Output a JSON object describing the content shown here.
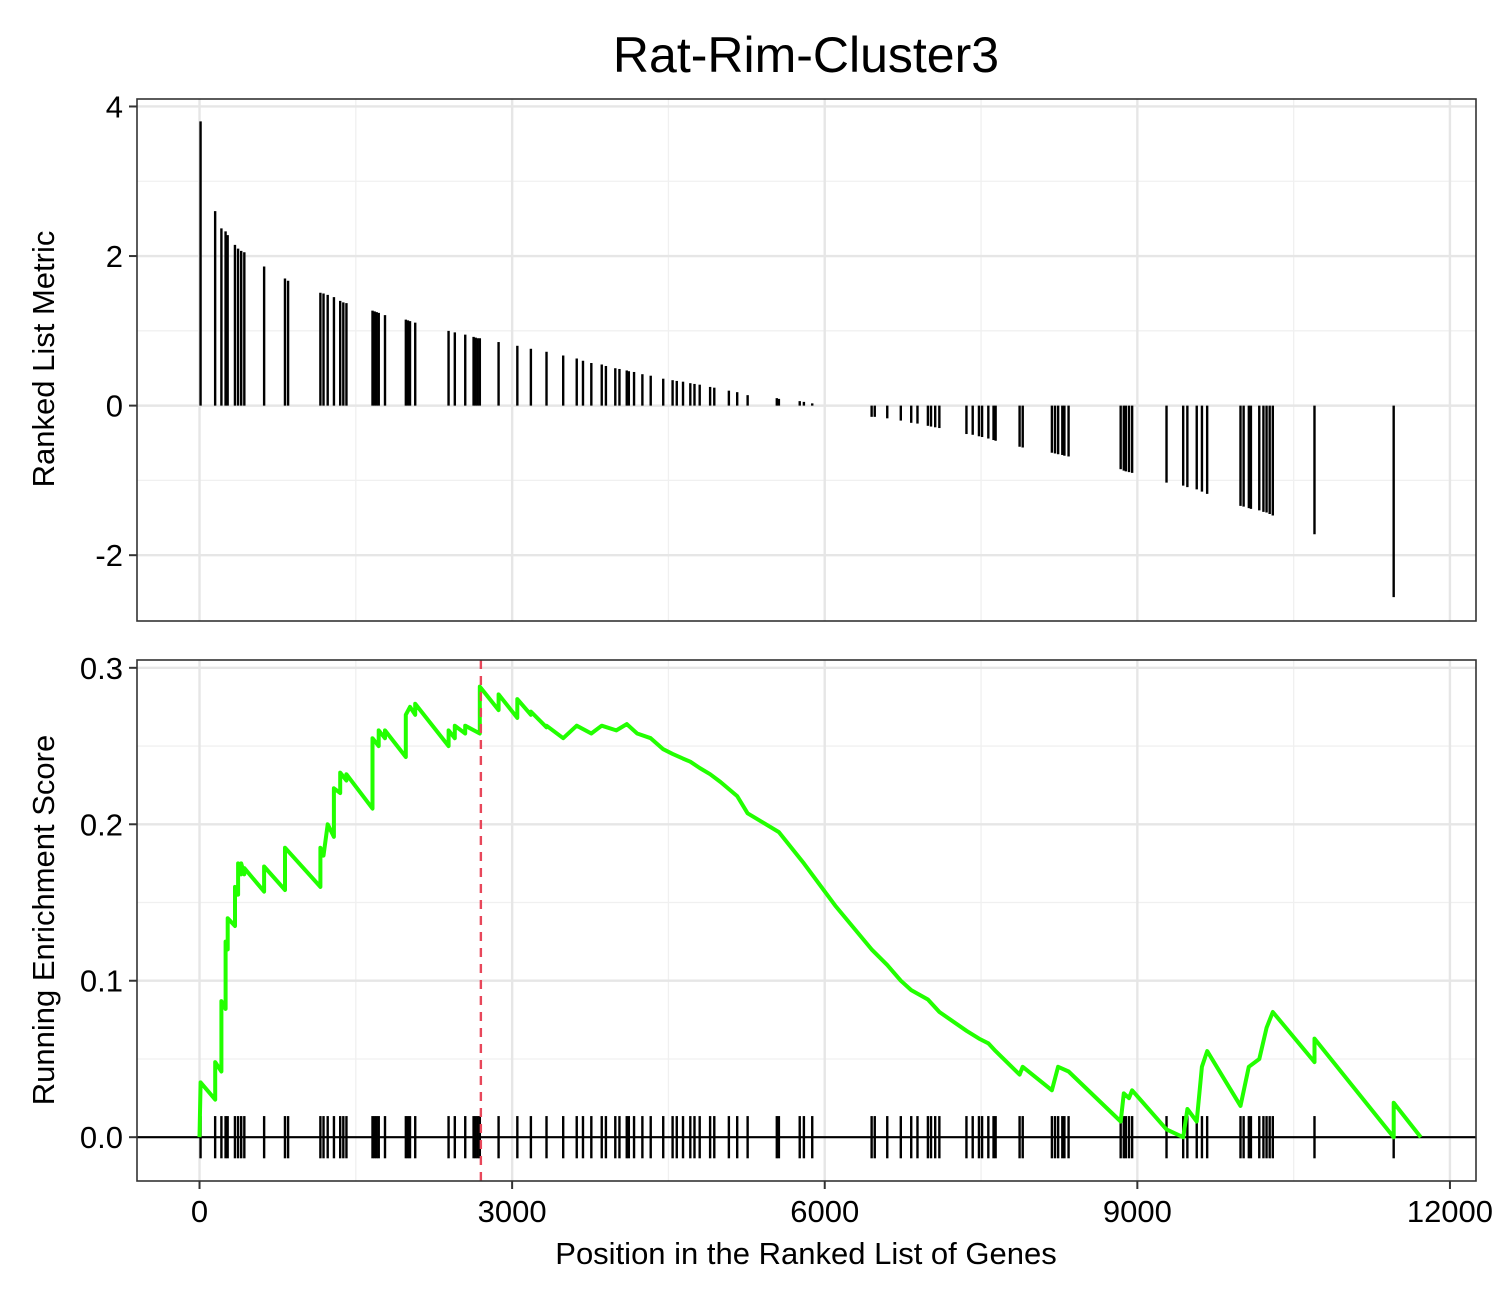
{
  "chart_data": {
    "type": "line",
    "title": "Rat-Rim-Cluster3",
    "xlabel": "Position in the Ranked List of Genes",
    "xlim": [
      -600,
      12250
    ],
    "xticks": [
      0,
      3000,
      6000,
      9000,
      12000
    ],
    "xtick_labels": [
      "0",
      "3000",
      "6000",
      "9000",
      "12000"
    ],
    "grid": true,
    "peak_marker": {
      "x": 2700,
      "color": "#e8475a",
      "style": "dashed"
    },
    "top_panel": {
      "type": "bar",
      "ylabel": "Ranked List Metric",
      "ylim": [
        -2.88,
        4.1
      ],
      "yticks": [
        -2,
        0,
        2,
        4
      ],
      "ytick_labels": [
        "-2",
        "0",
        "2",
        "4"
      ],
      "bars": {
        "x": [
          10,
          150,
          210,
          250,
          270,
          340,
          370,
          400,
          430,
          620,
          820,
          850,
          1160,
          1190,
          1230,
          1290,
          1350,
          1380,
          1410,
          1660,
          1680,
          1700,
          1720,
          1780,
          1980,
          2000,
          2020,
          2070,
          2390,
          2450,
          2550,
          2630,
          2650,
          2670,
          2690,
          2870,
          3050,
          3180,
          3330,
          3490,
          3620,
          3680,
          3760,
          3860,
          3900,
          3990,
          4030,
          4100,
          4120,
          4170,
          4250,
          4330,
          4450,
          4540,
          4580,
          4640,
          4710,
          4750,
          4800,
          4900,
          4940,
          5080,
          5160,
          5260,
          5540,
          5560,
          5760,
          5800,
          5880,
          6450,
          6480,
          6600,
          6730,
          6830,
          6890,
          6990,
          7020,
          7060,
          7100,
          7360,
          7420,
          7480,
          7510,
          7570,
          7620,
          7640,
          7870,
          7900,
          8180,
          8210,
          8240,
          8280,
          8300,
          8340,
          8840,
          8870,
          8890,
          8920,
          8950,
          9280,
          9440,
          9480,
          9570,
          9620,
          9670,
          9990,
          10020,
          10070,
          10090,
          10170,
          10210,
          10240,
          10270,
          10300,
          10700,
          11460
        ],
        "values": [
          3.8,
          2.6,
          2.37,
          2.33,
          2.28,
          2.15,
          2.1,
          2.07,
          2.05,
          1.86,
          1.7,
          1.67,
          1.51,
          1.5,
          1.48,
          1.45,
          1.4,
          1.38,
          1.37,
          1.27,
          1.26,
          1.25,
          1.24,
          1.21,
          1.15,
          1.14,
          1.13,
          1.11,
          1.0,
          0.98,
          0.95,
          0.92,
          0.91,
          0.9,
          0.9,
          0.85,
          0.8,
          0.76,
          0.72,
          0.67,
          0.63,
          0.6,
          0.57,
          0.55,
          0.53,
          0.5,
          0.49,
          0.47,
          0.46,
          0.45,
          0.42,
          0.4,
          0.36,
          0.34,
          0.33,
          0.32,
          0.3,
          0.29,
          0.28,
          0.25,
          0.24,
          0.2,
          0.18,
          0.14,
          0.1,
          0.09,
          0.06,
          0.05,
          0.03,
          -0.15,
          -0.15,
          -0.17,
          -0.2,
          -0.23,
          -0.24,
          -0.27,
          -0.28,
          -0.29,
          -0.3,
          -0.38,
          -0.39,
          -0.41,
          -0.42,
          -0.44,
          -0.46,
          -0.47,
          -0.55,
          -0.56,
          -0.63,
          -0.64,
          -0.65,
          -0.66,
          -0.67,
          -0.68,
          -0.85,
          -0.87,
          -0.88,
          -0.89,
          -0.9,
          -1.03,
          -1.07,
          -1.09,
          -1.12,
          -1.15,
          -1.18,
          -1.34,
          -1.35,
          -1.37,
          -1.38,
          -1.4,
          -1.42,
          -1.43,
          -1.45,
          -1.47,
          -1.72,
          -2.56
        ]
      }
    },
    "bottom_panel": {
      "type": "line",
      "ylabel": "Running Enrichment Score",
      "ylim": [
        -0.028,
        0.305
      ],
      "yticks": [
        0.0,
        0.1,
        0.2,
        0.3
      ],
      "ytick_labels": [
        "0.0",
        "0.1",
        "0.2",
        "0.3"
      ],
      "zero_line": true,
      "series": [
        {
          "color": "#22ff00",
          "x": [
            0,
            10,
            150,
            150,
            210,
            210,
            250,
            250,
            270,
            270,
            340,
            340,
            370,
            370,
            400,
            400,
            430,
            430,
            620,
            620,
            820,
            820,
            1160,
            1160,
            1190,
            1230,
            1290,
            1290,
            1350,
            1350,
            1410,
            1410,
            1660,
            1660,
            1720,
            1720,
            1780,
            1780,
            1980,
            1980,
            2020,
            2070,
            2070,
            2390,
            2390,
            2450,
            2450,
            2550,
            2550,
            2690,
            2690,
            2870,
            2870,
            3050,
            3050,
            3180,
            3180,
            3330,
            3330,
            3490,
            3620,
            3760,
            3860,
            4000,
            4100,
            4200,
            4330,
            4450,
            4540,
            4640,
            4710,
            4800,
            4900,
            5000,
            5160,
            5260,
            5560,
            5800,
            6100,
            6450,
            6600,
            6730,
            6830,
            6990,
            7100,
            7360,
            7480,
            7570,
            7640,
            7870,
            7900,
            8180,
            8240,
            8340,
            8840,
            8870,
            8920,
            8950,
            9280,
            9440,
            9480,
            9570,
            9620,
            9670,
            9990,
            10070,
            10170,
            10240,
            10300,
            10700,
            10700,
            11460,
            11460,
            11720
          ],
          "values": [
            0.0,
            0.035,
            0.024,
            0.048,
            0.042,
            0.087,
            0.082,
            0.125,
            0.12,
            0.14,
            0.135,
            0.16,
            0.155,
            0.175,
            0.168,
            0.175,
            0.168,
            0.172,
            0.157,
            0.173,
            0.158,
            0.185,
            0.16,
            0.185,
            0.18,
            0.2,
            0.192,
            0.223,
            0.22,
            0.233,
            0.228,
            0.232,
            0.21,
            0.255,
            0.25,
            0.26,
            0.255,
            0.26,
            0.243,
            0.27,
            0.275,
            0.27,
            0.277,
            0.25,
            0.26,
            0.255,
            0.263,
            0.258,
            0.263,
            0.258,
            0.288,
            0.273,
            0.283,
            0.268,
            0.28,
            0.27,
            0.272,
            0.262,
            0.263,
            0.255,
            0.263,
            0.258,
            0.263,
            0.26,
            0.264,
            0.258,
            0.255,
            0.248,
            0.245,
            0.242,
            0.24,
            0.236,
            0.232,
            0.227,
            0.218,
            0.207,
            0.195,
            0.175,
            0.148,
            0.12,
            0.11,
            0.1,
            0.094,
            0.088,
            0.08,
            0.068,
            0.063,
            0.06,
            0.055,
            0.04,
            0.045,
            0.03,
            0.045,
            0.042,
            0.01,
            0.028,
            0.025,
            0.03,
            0.005,
            0.0,
            0.018,
            0.01,
            0.045,
            0.055,
            0.02,
            0.045,
            0.05,
            0.07,
            0.08,
            0.048,
            0.063,
            0.0,
            0.022,
            0.0
          ]
        }
      ],
      "hits": {
        "color": "#000000",
        "x": [
          10,
          150,
          210,
          250,
          270,
          340,
          370,
          400,
          430,
          620,
          820,
          850,
          1160,
          1190,
          1230,
          1290,
          1350,
          1380,
          1410,
          1660,
          1680,
          1700,
          1720,
          1780,
          1980,
          2000,
          2020,
          2070,
          2390,
          2450,
          2550,
          2630,
          2650,
          2670,
          2690,
          2870,
          3050,
          3180,
          3330,
          3490,
          3620,
          3680,
          3760,
          3860,
          3900,
          3990,
          4030,
          4100,
          4120,
          4170,
          4250,
          4330,
          4450,
          4540,
          4580,
          4640,
          4710,
          4750,
          4800,
          4900,
          4940,
          5080,
          5160,
          5260,
          5540,
          5560,
          5760,
          5800,
          5880,
          6450,
          6480,
          6600,
          6730,
          6830,
          6890,
          6990,
          7020,
          7060,
          7100,
          7360,
          7420,
          7480,
          7510,
          7570,
          7620,
          7640,
          7870,
          7900,
          8180,
          8210,
          8240,
          8280,
          8300,
          8340,
          8840,
          8870,
          8890,
          8920,
          8950,
          9280,
          9440,
          9480,
          9570,
          9620,
          9670,
          9990,
          10020,
          10070,
          10090,
          10170,
          10210,
          10240,
          10270,
          10300,
          10700,
          11460
        ]
      }
    }
  }
}
